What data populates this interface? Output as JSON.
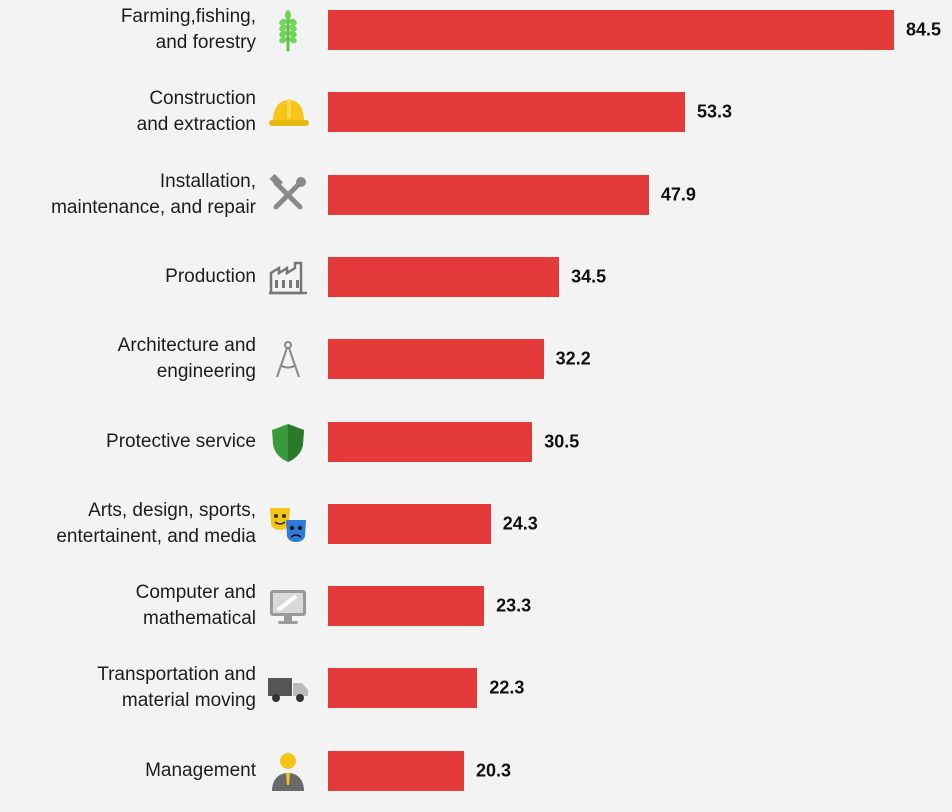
{
  "chart_data": {
    "type": "bar",
    "orientation": "horizontal",
    "categories": [
      "Farming,fishing,\nand forestry",
      "Construction\nand extraction",
      "Installation,\nmaintenance, and repair",
      "Production",
      "Architecture and\nengineering",
      "Protective service",
      "Arts, design, sports,\nentertainent, and media",
      "Computer and\nmathematical",
      "Transportation and\nmaterial moving",
      "Management"
    ],
    "values": [
      84.5,
      53.3,
      47.9,
      34.5,
      32.2,
      30.5,
      24.3,
      23.3,
      22.3,
      20.3
    ],
    "value_labels": [
      "84.5",
      "53.3",
      "47.9",
      "34.5",
      "32.2",
      "30.5",
      "24.3",
      "23.3",
      "22.3",
      "20.3"
    ],
    "icons": [
      "wheat-icon",
      "hard-hat-icon",
      "tools-icon",
      "factory-icon",
      "compass-icon",
      "shield-icon",
      "theater-masks-icon",
      "monitor-icon",
      "truck-icon",
      "manager-icon"
    ],
    "bar_color": "#e53a3a",
    "xlim": [
      0,
      84.5
    ],
    "grid": false,
    "legend": "none"
  }
}
